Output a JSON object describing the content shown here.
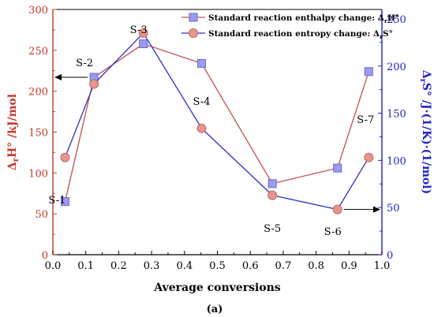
{
  "chart_data": {
    "type": "line",
    "panel_label": "(a)",
    "xlabel": "Average conversions",
    "ylabel_left_parts": [
      "Δ",
      "r",
      "H°",
      " /kJ/mol"
    ],
    "ylabel_right_parts": [
      "Δ",
      "r",
      "S°",
      " /J·(1/K)·(1/mol)"
    ],
    "xlim": [
      0.0,
      1.0
    ],
    "ylim_left": [
      0,
      300
    ],
    "ylim_right": [
      0,
      260
    ],
    "x_ticks": [
      0.0,
      0.1,
      0.2,
      0.3,
      0.4,
      0.5,
      0.6,
      0.7,
      0.8,
      0.9,
      1.0
    ],
    "y_left_ticks": [
      0,
      50,
      100,
      150,
      200,
      250,
      300
    ],
    "y_right_ticks": [
      0,
      50,
      100,
      150,
      200,
      250
    ],
    "legend_position": "top-right",
    "series": [
      {
        "name_parts": [
          "Standard reaction enthalpy change: Δ",
          "r",
          "H°"
        ],
        "axis": "left",
        "color": "#c0504d",
        "marker": "square",
        "marker_fill": "#9b9bef",
        "marker_stroke": "#6a6ad0",
        "x": [
          0.037,
          0.125,
          0.275,
          0.452,
          0.667,
          0.865,
          0.96
        ],
        "y": [
          65,
          217,
          258,
          234,
          87,
          106,
          224
        ]
      },
      {
        "name_parts": [
          "Standard reaction entropy change: Δ",
          "r",
          "S°"
        ],
        "axis": "right",
        "color": "#2e2ec4",
        "marker": "circle",
        "marker_fill": "#e6958f",
        "marker_stroke": "#bb6b66",
        "x": [
          0.037,
          0.125,
          0.275,
          0.452,
          0.667,
          0.865,
          0.96
        ],
        "y": [
          103,
          181,
          235,
          134,
          63,
          48,
          103
        ]
      }
    ],
    "point_labels": [
      {
        "text": "S-1",
        "x": 0.037
      },
      {
        "text": "S-2",
        "x": 0.125
      },
      {
        "text": "S-3",
        "x": 0.275
      },
      {
        "text": "S-4",
        "x": 0.452
      },
      {
        "text": "S-5",
        "x": 0.667
      },
      {
        "text": "S-6",
        "x": 0.865
      },
      {
        "text": "S-7",
        "x": 0.96
      }
    ]
  },
  "colors": {
    "left_axis": "#c0392b",
    "right_axis": "#2222cc",
    "text": "#000000"
  }
}
